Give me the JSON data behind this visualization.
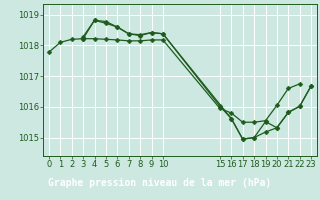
{
  "background_color": "#cce8e0",
  "plot_bg_color": "#cce8e0",
  "grid_color": "#ffffff",
  "line_color": "#1e5c1e",
  "marker_color": "#1e5c1e",
  "label_bg_color": "#1e5c1e",
  "label_text_color": "#ffffff",
  "series1_x": [
    0,
    1,
    2,
    3,
    4,
    5,
    6,
    7,
    8,
    9,
    10,
    15,
    16,
    17,
    18,
    19,
    20,
    21,
    22
  ],
  "series1_y": [
    1017.78,
    1018.1,
    1018.2,
    1018.22,
    1018.22,
    1018.2,
    1018.18,
    1018.15,
    1018.15,
    1018.18,
    1018.18,
    1015.95,
    1015.8,
    1015.5,
    1015.5,
    1015.55,
    1016.05,
    1016.6,
    1016.75
  ],
  "series2_x": [
    3,
    4,
    5,
    6,
    7,
    8,
    9,
    10,
    16,
    17,
    18,
    19,
    20,
    21,
    22,
    23
  ],
  "series2_y": [
    1018.28,
    1018.82,
    1018.78,
    1018.6,
    1018.38,
    1018.35,
    1018.42,
    1018.38,
    1015.62,
    1014.95,
    1015.0,
    1015.52,
    1015.32,
    1015.82,
    1016.02,
    1016.68
  ],
  "series3_x": [
    3,
    4,
    5,
    6,
    7,
    8,
    9,
    10,
    15,
    16,
    17,
    18,
    19,
    20,
    21,
    22,
    23
  ],
  "series3_y": [
    1018.22,
    1018.82,
    1018.72,
    1018.6,
    1018.38,
    1018.32,
    1018.42,
    1018.38,
    1016.02,
    1015.62,
    1014.95,
    1015.0,
    1015.18,
    1015.32,
    1015.82,
    1016.02,
    1016.68
  ],
  "xtick_positions": [
    0,
    1,
    2,
    3,
    4,
    5,
    6,
    7,
    8,
    9,
    10,
    15,
    16,
    17,
    18,
    19,
    20,
    21,
    22,
    23
  ],
  "xtick_labels": [
    "0",
    "1",
    "2",
    "3",
    "4",
    "5",
    "6",
    "7",
    "8",
    "9",
    "10",
    "15",
    "16",
    "17",
    "18",
    "19",
    "20",
    "21",
    "22",
    "23"
  ],
  "yticks": [
    1015,
    1016,
    1017,
    1018,
    1019
  ],
  "xlim": [
    -0.5,
    23.5
  ],
  "ylim": [
    1014.4,
    1019.35
  ],
  "xlabel": "Graphe pression niveau de la mer (hPa)",
  "xlabel_fontsize": 7,
  "tick_fontsize": 6,
  "marker_size": 2.5,
  "line_width": 0.9
}
